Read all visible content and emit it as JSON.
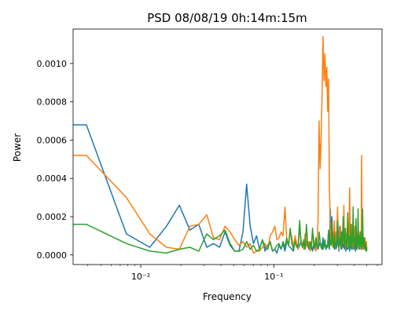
{
  "chart_data": {
    "type": "line",
    "title": "PSD 08/08/19 0h:14m:15m",
    "xlabel": "Frequency",
    "ylabel": "Power",
    "xscale": "log",
    "xlim": [
      0.0031,
      0.65
    ],
    "ylim": [
      -5e-05,
      0.00118
    ],
    "yticks": [
      0.0,
      0.0002,
      0.0004,
      0.0006,
      0.0008,
      0.001
    ],
    "ytick_labels": [
      "0.0000",
      "0.0002",
      "0.0004",
      "0.0006",
      "0.0008",
      "0.0010"
    ],
    "xticks": [
      0.01,
      0.1
    ],
    "xtick_labels": [
      "10⁻²",
      "10⁻¹"
    ],
    "grid": false,
    "series": [
      {
        "color": "#1f77b4",
        "x": [
          0.0031,
          0.0039,
          0.0078,
          0.0117,
          0.0156,
          0.0195,
          0.0234,
          0.0273,
          0.0313,
          0.0352,
          0.0391,
          0.043,
          0.0469,
          0.0508,
          0.0547,
          0.0586,
          0.0625,
          0.0664,
          0.0703,
          0.0742,
          0.0781,
          0.082,
          0.0859,
          0.0898,
          0.0938,
          0.0977,
          0.1016,
          0.1055,
          0.1094,
          0.1133,
          0.1172,
          0.1211,
          0.125,
          0.1289,
          0.1328,
          0.1367,
          0.1406,
          0.1445,
          0.1484,
          0.1523,
          0.1563,
          0.1602,
          0.1641,
          0.168,
          0.1719,
          0.1758,
          0.1797,
          0.1836,
          0.1875,
          0.1914,
          0.1953,
          0.1992,
          0.2031,
          0.207,
          0.2109,
          0.2148,
          0.2188,
          0.2227,
          0.2266,
          0.2305,
          0.2344,
          0.2383,
          0.2422,
          0.2461,
          0.25,
          0.2539,
          0.2578,
          0.2617,
          0.2656,
          0.2695,
          0.2734,
          0.2773,
          0.2813,
          0.2852,
          0.2891,
          0.293,
          0.2969,
          0.3008,
          0.3047,
          0.3086,
          0.3125,
          0.3164,
          0.3203,
          0.3242,
          0.3281,
          0.332,
          0.3359,
          0.3398,
          0.3438,
          0.3477,
          0.3516,
          0.3555,
          0.3594,
          0.3633,
          0.3672,
          0.3711,
          0.375,
          0.3789,
          0.3828,
          0.3867,
          0.3906,
          0.3945,
          0.3984,
          0.4023,
          0.4063,
          0.4102,
          0.4141,
          0.418,
          0.4219,
          0.4258,
          0.4297,
          0.4336,
          0.4375,
          0.4414,
          0.4453,
          0.4492,
          0.4531,
          0.457,
          0.4609,
          0.4648,
          0.4688,
          0.4727,
          0.4766,
          0.4805,
          0.4844,
          0.4883,
          0.4922,
          0.4961,
          0.5
        ],
        "values": [
          0.00068,
          0.00068,
          0.00011,
          4e-05,
          0.00015,
          0.00026,
          0.00013,
          0.00016,
          4e-05,
          6e-05,
          4e-05,
          0.00012,
          5e-05,
          2e-05,
          2e-05,
          0.00012,
          0.00037,
          0.00015,
          6e-05,
          0.0001,
          3e-05,
          8e-05,
          2e-05,
          5e-05,
          7e-05,
          2e-05,
          3e-05,
          1e-05,
          5e-05,
          3e-05,
          6e-05,
          2e-05,
          7e-05,
          5e-05,
          4e-05,
          3e-05,
          2e-05,
          8e-05,
          6e-05,
          3e-05,
          5e-05,
          7e-05,
          4e-05,
          6e-05,
          3e-05,
          7e-05,
          5e-05,
          3e-05,
          4e-05,
          6e-05,
          2e-05,
          5e-05,
          3e-05,
          6e-05,
          4e-05,
          3e-05,
          5e-05,
          7e-05,
          4e-05,
          3e-05,
          9e-05,
          4e-05,
          6e-05,
          3e-05,
          5e-05,
          4e-05,
          8e-05,
          3e-05,
          0.00024,
          8e-05,
          0.0002,
          5e-05,
          0.00012,
          3e-05,
          9e-05,
          6e-05,
          4e-05,
          0.00011,
          6e-05,
          2e-05,
          0.00015,
          8e-05,
          3e-05,
          0.00012,
          6e-05,
          4e-05,
          9e-05,
          3e-05,
          6e-05,
          2e-05,
          0.00011,
          5e-05,
          3e-05,
          7e-05,
          4e-05,
          2e-05,
          8e-05,
          5e-05,
          3e-05,
          6e-05,
          4e-05,
          8e-05,
          3e-05,
          6e-05,
          5e-05,
          2e-05,
          7e-05,
          4e-05,
          3e-05,
          9e-05,
          6e-05,
          4e-05,
          3e-05,
          7e-05,
          5e-05,
          0.00012,
          4e-05,
          6e-05,
          3e-05,
          8e-05,
          5e-05,
          4e-05,
          9e-05,
          3e-05,
          6e-05,
          4e-05,
          2e-05,
          5e-05,
          3e-05
        ]
      },
      {
        "color": "#ff7f0e",
        "x": [
          0.0031,
          0.0039,
          0.0078,
          0.0117,
          0.0156,
          0.0195,
          0.0234,
          0.0273,
          0.0313,
          0.0352,
          0.0391,
          0.043,
          0.0469,
          0.0508,
          0.0547,
          0.0586,
          0.0625,
          0.0664,
          0.0703,
          0.0742,
          0.0781,
          0.082,
          0.0859,
          0.0898,
          0.0938,
          0.0977,
          0.1016,
          0.1055,
          0.1094,
          0.1133,
          0.1172,
          0.1211,
          0.125,
          0.1289,
          0.1328,
          0.1367,
          0.1406,
          0.1445,
          0.1484,
          0.1523,
          0.1563,
          0.1602,
          0.1641,
          0.168,
          0.1719,
          0.1758,
          0.1797,
          0.1836,
          0.1875,
          0.1914,
          0.1953,
          0.1992,
          0.2031,
          0.207,
          0.2109,
          0.2148,
          0.2188,
          0.2227,
          0.2266,
          0.2305,
          0.2344,
          0.2383,
          0.2422,
          0.2461,
          0.25,
          0.2539,
          0.2578,
          0.2617,
          0.2656,
          0.2695,
          0.2734,
          0.2773,
          0.2813,
          0.2852,
          0.2891,
          0.293,
          0.2969,
          0.3008,
          0.3047,
          0.3086,
          0.3125,
          0.3164,
          0.3203,
          0.3242,
          0.3281,
          0.332,
          0.3359,
          0.3398,
          0.3438,
          0.3477,
          0.3516,
          0.3555,
          0.3594,
          0.3633,
          0.3672,
          0.3711,
          0.375,
          0.3789,
          0.3828,
          0.3867,
          0.3906,
          0.3945,
          0.3984,
          0.4023,
          0.4063,
          0.4102,
          0.4141,
          0.418,
          0.4219,
          0.4258,
          0.4297,
          0.4336,
          0.4375,
          0.4414,
          0.4453,
          0.4492,
          0.4531,
          0.457,
          0.4609,
          0.4648,
          0.4688,
          0.4727,
          0.4766,
          0.4805,
          0.4844,
          0.4883,
          0.4922,
          0.4961,
          0.5
        ],
        "values": [
          0.00052,
          0.00052,
          0.0003,
          0.00011,
          4e-05,
          3e-05,
          0.00015,
          0.00016,
          0.00021,
          9e-05,
          8e-05,
          0.00015,
          0.00012,
          8e-05,
          5e-05,
          7e-05,
          4e-05,
          6e-05,
          1e-05,
          2e-05,
          2e-05,
          4e-05,
          6e-05,
          3e-05,
          0.0001,
          0.00012,
          0.00015,
          8e-05,
          9e-05,
          0.00012,
          0.0001,
          0.00025,
          8e-05,
          5e-05,
          0.00012,
          9e-05,
          4e-05,
          0.0001,
          6e-05,
          3e-05,
          0.00014,
          8e-05,
          5e-05,
          3e-05,
          0.00011,
          6e-05,
          4e-05,
          7e-05,
          2e-05,
          5e-05,
          0.00012,
          8e-05,
          4e-05,
          2e-05,
          6e-05,
          0.00017,
          0.0007,
          0.00045,
          0.0006,
          0.00085,
          0.00114,
          0.00091,
          0.00105,
          0.00088,
          0.00098,
          0.00075,
          0.00092,
          0.00035,
          0.00014,
          6e-05,
          8e-05,
          4e-05,
          0.0001,
          0.00018,
          5e-05,
          0.00012,
          8e-05,
          0.00025,
          0.00011,
          3e-05,
          7e-05,
          0.00015,
          9e-05,
          4e-05,
          0.00012,
          6e-05,
          0.00026,
          5e-05,
          0.0001,
          3e-05,
          8e-05,
          0.00014,
          4e-05,
          9e-05,
          6e-05,
          0.00035,
          0.00012,
          5e-05,
          0.00016,
          8e-05,
          3e-05,
          7e-05,
          0.0001,
          4e-05,
          0.00015,
          9e-05,
          0.00013,
          5e-05,
          8e-05,
          0.00011,
          4e-05,
          7e-05,
          0.00012,
          6e-05,
          3e-05,
          9e-05,
          5e-05,
          0.00052,
          0.0001,
          4e-05,
          8e-05,
          3e-05,
          6e-05,
          4e-05,
          9e-05,
          5e-05,
          3e-05,
          7e-05,
          3e-05
        ]
      },
      {
        "color": "#2ca02c",
        "x": [
          0.0031,
          0.0039,
          0.0078,
          0.0117,
          0.0156,
          0.0195,
          0.0234,
          0.0273,
          0.0313,
          0.0352,
          0.0391,
          0.043,
          0.0469,
          0.0508,
          0.0547,
          0.0586,
          0.0625,
          0.0664,
          0.0703,
          0.0742,
          0.0781,
          0.082,
          0.0859,
          0.0898,
          0.0938,
          0.0977,
          0.1016,
          0.1055,
          0.1094,
          0.1133,
          0.1172,
          0.1211,
          0.125,
          0.1289,
          0.1328,
          0.1367,
          0.1406,
          0.1445,
          0.1484,
          0.1523,
          0.1563,
          0.1602,
          0.1641,
          0.168,
          0.1719,
          0.1758,
          0.1797,
          0.1836,
          0.1875,
          0.1914,
          0.1953,
          0.1992,
          0.2031,
          0.207,
          0.2109,
          0.2148,
          0.2188,
          0.2227,
          0.2266,
          0.2305,
          0.2344,
          0.2383,
          0.2422,
          0.2461,
          0.25,
          0.2539,
          0.2578,
          0.2617,
          0.2656,
          0.2695,
          0.2734,
          0.2773,
          0.2813,
          0.2852,
          0.2891,
          0.293,
          0.2969,
          0.3008,
          0.3047,
          0.3086,
          0.3125,
          0.3164,
          0.3203,
          0.3242,
          0.3281,
          0.332,
          0.3359,
          0.3398,
          0.3438,
          0.3477,
          0.3516,
          0.3555,
          0.3594,
          0.3633,
          0.3672,
          0.3711,
          0.375,
          0.3789,
          0.3828,
          0.3867,
          0.3906,
          0.3945,
          0.3984,
          0.4023,
          0.4063,
          0.4102,
          0.4141,
          0.418,
          0.4219,
          0.4258,
          0.4297,
          0.4336,
          0.4375,
          0.4414,
          0.4453,
          0.4492,
          0.4531,
          0.457,
          0.4609,
          0.4648,
          0.4688,
          0.4727,
          0.4766,
          0.4805,
          0.4844,
          0.4883,
          0.4922,
          0.4961,
          0.5
        ],
        "values": [
          0.00016,
          0.00016,
          6e-05,
          2e-05,
          1e-05,
          3e-05,
          4e-05,
          2e-05,
          0.00011,
          8e-05,
          0.0001,
          0.00013,
          6e-05,
          2e-05,
          2e-05,
          3e-05,
          7e-05,
          3e-05,
          5e-05,
          2e-05,
          3e-05,
          8e-05,
          4e-05,
          3e-05,
          7e-05,
          2e-05,
          3e-05,
          5e-05,
          6e-05,
          3e-05,
          7e-05,
          4e-05,
          9e-05,
          5e-05,
          0.00014,
          6e-05,
          3e-05,
          7e-05,
          4e-05,
          5e-05,
          0.00018,
          6e-05,
          4e-05,
          8e-05,
          3e-05,
          0.00016,
          5e-05,
          4e-05,
          7e-05,
          3e-05,
          0.00014,
          5e-05,
          4e-05,
          9e-05,
          6e-05,
          3e-05,
          0.00012,
          7e-05,
          4e-05,
          6e-05,
          3e-05,
          5e-05,
          8e-05,
          3e-05,
          4e-05,
          6e-05,
          0.00013,
          4e-05,
          8e-05,
          5e-05,
          0.00017,
          6e-05,
          4e-05,
          0.00011,
          5e-05,
          3e-05,
          8e-05,
          0.00018,
          6e-05,
          4e-05,
          9e-05,
          5e-05,
          0.00012,
          3e-05,
          7e-05,
          0.0002,
          8e-05,
          5e-05,
          0.00014,
          6e-05,
          3e-05,
          9e-05,
          0.00022,
          7e-05,
          4e-05,
          0.0001,
          5e-05,
          0.00016,
          6e-05,
          3e-05,
          0.00011,
          0.00025,
          7e-05,
          4e-05,
          9e-05,
          5e-05,
          0.00019,
          6e-05,
          3e-05,
          8e-05,
          0.00024,
          5e-05,
          0.0001,
          4e-05,
          7e-05,
          0.00012,
          5e-05,
          3e-05,
          8e-05,
          0.00024,
          6e-05,
          4e-05,
          9e-05,
          5e-05,
          3e-05,
          6e-05,
          2e-05,
          4e-05,
          2e-05
        ]
      }
    ]
  }
}
